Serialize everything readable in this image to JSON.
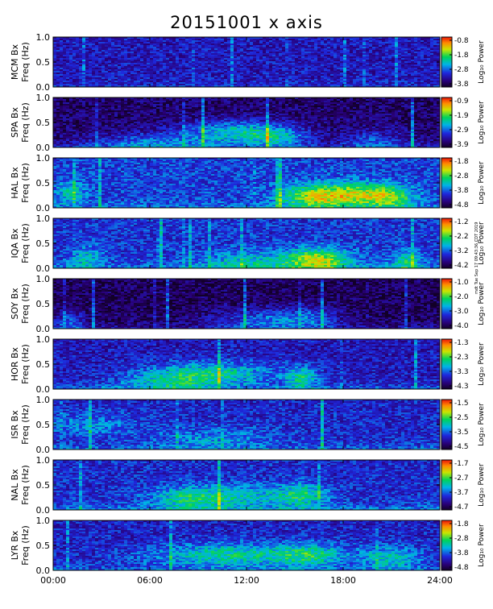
{
  "title": "20151001  x axis",
  "side_note": "mdt Tue Sep 17 09:43:36 CDT 2019",
  "colorbar_label": "Log₁₀ Power",
  "chart_data": {
    "type": "heatmap",
    "xlim": [
      0,
      24
    ],
    "x_ticks": [
      "00:00",
      "06:00",
      "12:00",
      "18:00",
      "24:00"
    ],
    "ylim": [
      0,
      1.0
    ],
    "y_ticks": [
      "0.0",
      "0.5",
      "1.0"
    ],
    "panels": [
      {
        "station_label": "MCM Bx",
        "ylabel": "Freq (Hz)",
        "cbar_ticks": [
          "-0.8",
          "-1.8",
          "-2.8",
          "-3.8"
        ]
      },
      {
        "station_label": "SPA Bx",
        "ylabel": "Freq (Hz)",
        "cbar_ticks": [
          "-0.9",
          "-1.9",
          "-2.9",
          "-3.9"
        ]
      },
      {
        "station_label": "HAL Bx",
        "ylabel": "Freq (Hz)",
        "cbar_ticks": [
          "-1.8",
          "-2.8",
          "-3.8",
          "-4.8"
        ]
      },
      {
        "station_label": "IQA Bx",
        "ylabel": "Freq (Hz)",
        "cbar_ticks": [
          "-1.2",
          "-2.2",
          "-3.2",
          "-4.2"
        ]
      },
      {
        "station_label": "SOY Bx",
        "ylabel": "Freq (Hz)",
        "cbar_ticks": [
          "-1.0",
          "-2.0",
          "-3.0",
          "-4.0"
        ]
      },
      {
        "station_label": "HOR Bx",
        "ylabel": "Freq (Hz)",
        "cbar_ticks": [
          "-1.3",
          "-2.3",
          "-3.3",
          "-4.3"
        ]
      },
      {
        "station_label": "ISR Bx",
        "ylabel": "Freq (Hz)",
        "cbar_ticks": [
          "-1.5",
          "-2.5",
          "-3.5",
          "-4.5"
        ]
      },
      {
        "station_label": "NAL Bx",
        "ylabel": "Freq (Hz)",
        "cbar_ticks": [
          "-1.7",
          "-2.7",
          "-3.7",
          "-4.7"
        ]
      },
      {
        "station_label": "LYR Bx",
        "ylabel": "Freq (Hz)",
        "cbar_ticks": [
          "-1.8",
          "-2.8",
          "-3.8",
          "-4.8"
        ]
      }
    ]
  }
}
